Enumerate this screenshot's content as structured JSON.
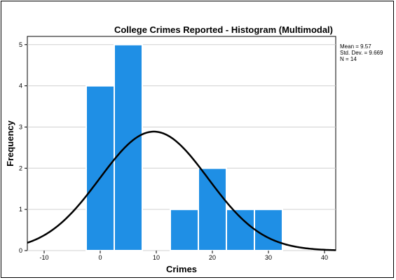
{
  "chart_data": {
    "type": "bar",
    "title": "College Crimes Reported - Histogram (Multimodal)",
    "xlabel": "Crimes",
    "ylabel": "Frequency",
    "bins": [
      {
        "start": -2.5,
        "end": 2.5,
        "count": 4
      },
      {
        "start": 2.5,
        "end": 7.5,
        "count": 5
      },
      {
        "start": 7.5,
        "end": 12.5,
        "count": 0
      },
      {
        "start": 12.5,
        "end": 17.5,
        "count": 1
      },
      {
        "start": 17.5,
        "end": 22.5,
        "count": 2
      },
      {
        "start": 22.5,
        "end": 27.5,
        "count": 1
      },
      {
        "start": 27.5,
        "end": 32.5,
        "count": 1
      }
    ],
    "xlim": [
      -13,
      42
    ],
    "ylim": [
      0,
      5.2
    ],
    "xticks": [
      "-10",
      "0",
      "10",
      "20",
      "30",
      "40"
    ],
    "yticks": [
      "0",
      "1",
      "2",
      "3",
      "4",
      "5"
    ],
    "normal_curve": {
      "mean": 9.57,
      "sd": 9.669,
      "n": 14,
      "bin_width": 5
    },
    "stats": [
      "Mean = 9.57",
      "Std. Dev. = 9.669",
      "N = 14"
    ],
    "bar_color": "#1f8fe5",
    "bar_edge_color": "#ffffff",
    "curve_color": "#000000",
    "gridlines": "horizontal"
  }
}
